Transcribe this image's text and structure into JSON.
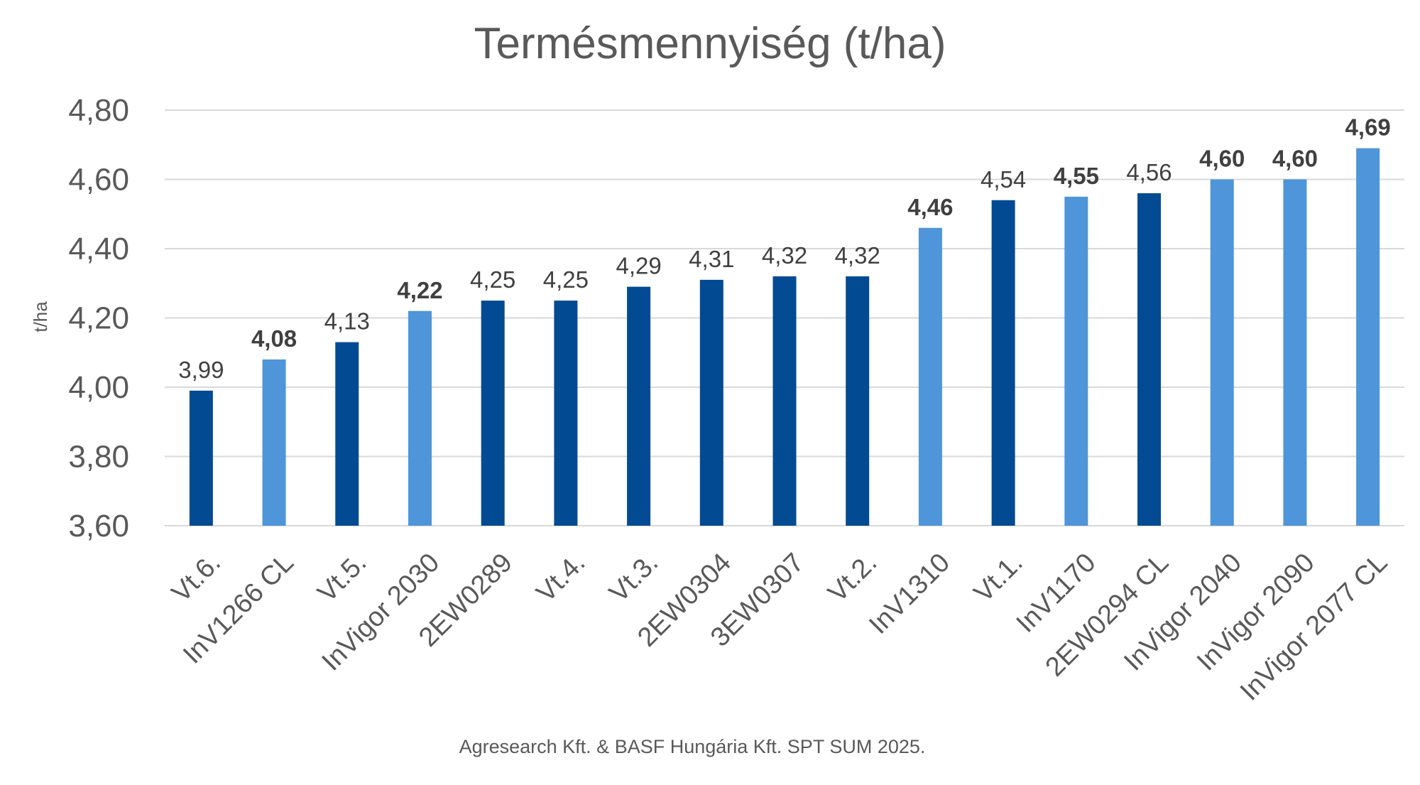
{
  "chart_data": {
    "type": "bar",
    "title": "Termésmennyiség (t/ha)",
    "ylabel": "t/ha",
    "xlabel": "",
    "ylim": [
      3.6,
      4.8
    ],
    "yticks": [
      "3,60",
      "3,80",
      "4,00",
      "4,20",
      "4,40",
      "4,60",
      "4,80"
    ],
    "yticks_values": [
      3.6,
      3.8,
      4.0,
      4.2,
      4.4,
      4.6,
      4.8
    ],
    "grid": true,
    "categories": [
      "Vt.6.",
      "InV1266 CL",
      "Vt.5.",
      "InVigor 2030",
      "2EW0289",
      "Vt.4.",
      "Vt.3.",
      "2EW0304",
      "3EW0307",
      "Vt.2.",
      "InV1310",
      "Vt.1.",
      "InV1170",
      "2EW0294 CL",
      "InVigor 2040",
      "InVigor 2090",
      "InVigor 2077 CL"
    ],
    "values": [
      3.99,
      4.08,
      4.13,
      4.22,
      4.25,
      4.25,
      4.29,
      4.31,
      4.32,
      4.32,
      4.46,
      4.54,
      4.55,
      4.56,
      4.6,
      4.6,
      4.69
    ],
    "value_labels": [
      "3,99",
      "4,08",
      "4,13",
      "4,22",
      "4,25",
      "4,25",
      "4,29",
      "4,31",
      "4,32",
      "4,32",
      "4,46",
      "4,54",
      "4,55",
      "4,56",
      "4,60",
      "4,60",
      "4,69"
    ],
    "bold_labels": [
      false,
      true,
      false,
      true,
      false,
      false,
      false,
      false,
      false,
      false,
      true,
      false,
      true,
      false,
      true,
      true,
      true
    ],
    "bar_groups": [
      "dark",
      "light",
      "dark",
      "light",
      "dark",
      "dark",
      "dark",
      "dark",
      "dark",
      "dark",
      "light",
      "dark",
      "light",
      "dark",
      "light",
      "light",
      "light"
    ],
    "colors": {
      "dark": "#024b93",
      "light": "#4e95d9"
    }
  },
  "footer": {
    "source": "Agresearch Kft. & BASF Hungária Kft. SPT SUM 2025."
  }
}
